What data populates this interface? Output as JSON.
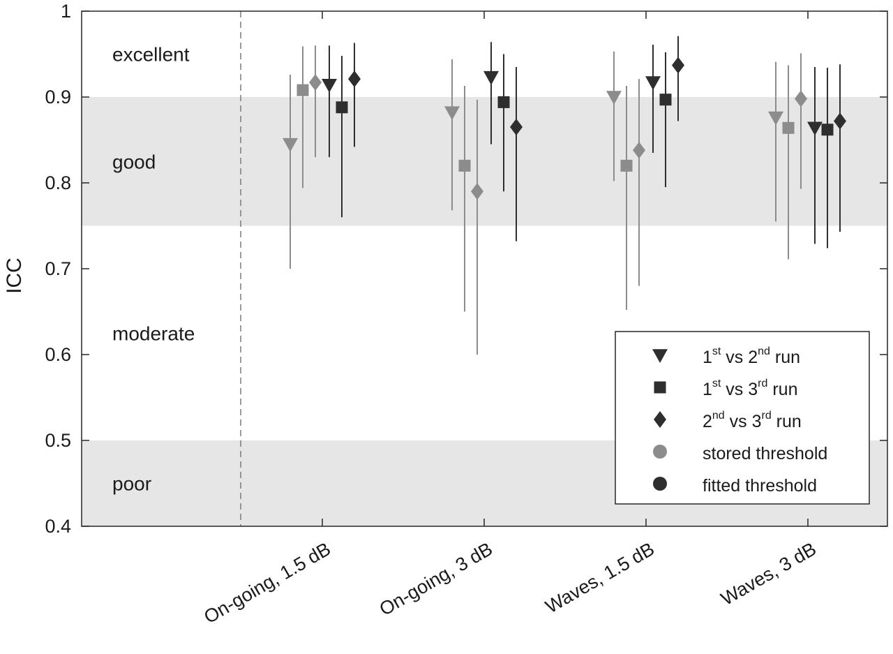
{
  "chart_data": {
    "type": "scatter",
    "ylabel": "ICC",
    "ylim": [
      0.4,
      1.0
    ],
    "y_ticks": [
      "0.4",
      "0.5",
      "0.6",
      "0.7",
      "0.8",
      "0.9",
      "1"
    ],
    "y_tick_values": [
      0.4,
      0.5,
      0.6,
      0.7,
      0.8,
      0.9,
      1.0
    ],
    "categories": [
      "On-going, 1.5 dB",
      "On-going, 3 dB",
      "Waves, 1.5 dB",
      "Waves, 3 dB"
    ],
    "bands": [
      {
        "label": "excellent",
        "range": [
          0.9,
          1.0
        ],
        "shaded": false
      },
      {
        "label": "good",
        "range": [
          0.75,
          0.9
        ],
        "shaded": true
      },
      {
        "label": "moderate",
        "range": [
          0.5,
          0.75
        ],
        "shaded": false
      },
      {
        "label": "poor",
        "range": [
          0.4,
          0.5
        ],
        "shaded": true
      }
    ],
    "colors": {
      "stored": "#8c8c8c",
      "fitted": "#2e2e2e",
      "band_fill": "#e6e6e6",
      "axis": "#262626"
    },
    "legend": {
      "placement": "bottom-right",
      "items": [
        {
          "shape": "triangle-down",
          "color": "fitted",
          "parts": [
            {
              "t": "1"
            },
            {
              "t": "st",
              "sup": true
            },
            {
              "t": " vs 2"
            },
            {
              "t": "nd",
              "sup": true
            },
            {
              "t": " run"
            }
          ]
        },
        {
          "shape": "square",
          "color": "fitted",
          "parts": [
            {
              "t": "1"
            },
            {
              "t": "st",
              "sup": true
            },
            {
              "t": " vs 3"
            },
            {
              "t": "rd",
              "sup": true
            },
            {
              "t": " run"
            }
          ]
        },
        {
          "shape": "diamond",
          "color": "fitted",
          "parts": [
            {
              "t": "2"
            },
            {
              "t": "nd",
              "sup": true
            },
            {
              "t": " vs 3"
            },
            {
              "t": "rd",
              "sup": true
            },
            {
              "t": " run"
            }
          ]
        },
        {
          "shape": "circle",
          "color": "stored",
          "parts": [
            {
              "t": "stored threshold"
            }
          ]
        },
        {
          "shape": "circle",
          "color": "fitted",
          "parts": [
            {
              "t": "fitted threshold"
            }
          ]
        }
      ]
    },
    "series": [
      {
        "name": "stored threshold",
        "comparison": "1st vs 2nd run",
        "marker": "triangle-down",
        "color": "stored",
        "values": [
          0.845,
          0.882,
          0.9,
          0.876
        ],
        "ci_low": [
          0.7,
          0.768,
          0.802,
          0.755
        ],
        "ci_high": [
          0.926,
          0.944,
          0.953,
          0.941
        ]
      },
      {
        "name": "stored threshold",
        "comparison": "1st vs 3rd run",
        "marker": "square",
        "color": "stored",
        "values": [
          0.908,
          0.82,
          0.82,
          0.864
        ],
        "ci_low": [
          0.794,
          0.65,
          0.652,
          0.711
        ],
        "ci_high": [
          0.959,
          0.913,
          0.913,
          0.937
        ]
      },
      {
        "name": "stored threshold",
        "comparison": "2nd vs 3rd run",
        "marker": "diamond",
        "color": "stored",
        "values": [
          0.917,
          0.79,
          0.838,
          0.898
        ],
        "ci_low": [
          0.83,
          0.6,
          0.68,
          0.793
        ],
        "ci_high": [
          0.96,
          0.897,
          0.921,
          0.951
        ]
      },
      {
        "name": "fitted threshold",
        "comparison": "1st vs 2nd run",
        "marker": "triangle-down",
        "color": "fitted",
        "values": [
          0.914,
          0.923,
          0.917,
          0.864
        ],
        "ci_low": [
          0.83,
          0.845,
          0.835,
          0.729
        ],
        "ci_high": [
          0.96,
          0.964,
          0.961,
          0.935
        ]
      },
      {
        "name": "fitted threshold",
        "comparison": "1st vs 3rd run",
        "marker": "square",
        "color": "fitted",
        "values": [
          0.888,
          0.894,
          0.897,
          0.862
        ],
        "ci_low": [
          0.76,
          0.79,
          0.795,
          0.724
        ],
        "ci_high": [
          0.948,
          0.95,
          0.952,
          0.934
        ]
      },
      {
        "name": "fitted threshold",
        "comparison": "2nd vs 3rd run",
        "marker": "diamond",
        "color": "fitted",
        "values": [
          0.921,
          0.865,
          0.937,
          0.872
        ],
        "ci_low": [
          0.842,
          0.732,
          0.872,
          0.743
        ],
        "ci_high": [
          0.963,
          0.935,
          0.971,
          0.938
        ]
      }
    ]
  }
}
